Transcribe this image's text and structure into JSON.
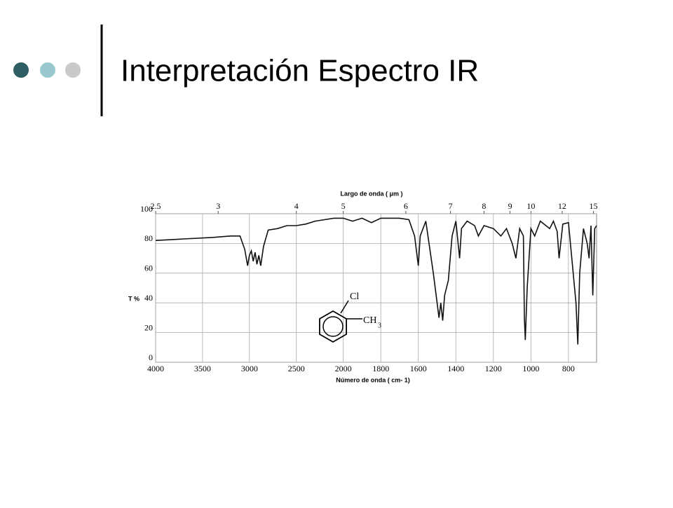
{
  "slide_title": "Interpretación Espectro IR",
  "chart_data": {
    "type": "line",
    "top_axis_label": "Largo de onda ( μm )",
    "y_axis_label": "T %",
    "x_axis_label": "Número de onda ( cm- 1)",
    "annotations": [
      "Cl",
      "CH",
      "3"
    ],
    "x": [
      4000,
      3700,
      3400,
      3200,
      3100,
      3050,
      3020,
      3000,
      2980,
      2960,
      2940,
      2920,
      2900,
      2880,
      2850,
      2800,
      2700,
      2600,
      2500,
      2400,
      2300,
      2200,
      2100,
      2000,
      1950,
      1900,
      1850,
      1800,
      1700,
      1650,
      1620,
      1600,
      1590,
      1560,
      1520,
      1490,
      1480,
      1470,
      1460,
      1440,
      1420,
      1400,
      1380,
      1370,
      1340,
      1300,
      1280,
      1250,
      1200,
      1160,
      1130,
      1100,
      1080,
      1060,
      1040,
      1035,
      1030,
      1020,
      1000,
      980,
      950,
      900,
      880,
      860,
      850,
      830,
      800,
      760,
      750,
      740,
      720,
      700,
      690,
      680,
      670,
      660,
      650
    ],
    "values": [
      82,
      83,
      84,
      85,
      85,
      76,
      65,
      72,
      75,
      68,
      74,
      66,
      72,
      65,
      78,
      89,
      90,
      92,
      92,
      93,
      95,
      96,
      97,
      97,
      95,
      97,
      94,
      97,
      97,
      96,
      85,
      65,
      85,
      95,
      60,
      30,
      40,
      28,
      45,
      55,
      85,
      95,
      70,
      90,
      95,
      92,
      85,
      92,
      90,
      85,
      90,
      80,
      70,
      90,
      85,
      30,
      15,
      50,
      90,
      85,
      95,
      90,
      95,
      88,
      70,
      93,
      94,
      40,
      12,
      60,
      90,
      80,
      70,
      92,
      45,
      90,
      92
    ],
    "color": "#111111",
    "xlim": [
      4000,
      650
    ],
    "x_scale_break": 2000,
    "xticks": [
      4000,
      3500,
      3000,
      2500,
      2000,
      1800,
      1600,
      1400,
      1200,
      1000,
      800
    ],
    "x2ticks": [
      2.5,
      3,
      4,
      5,
      6,
      7,
      8,
      9,
      10,
      12,
      15
    ],
    "ylim": [
      0,
      100
    ],
    "yticks": [
      0,
      20,
      40,
      60,
      80,
      100
    ],
    "grid": true
  }
}
